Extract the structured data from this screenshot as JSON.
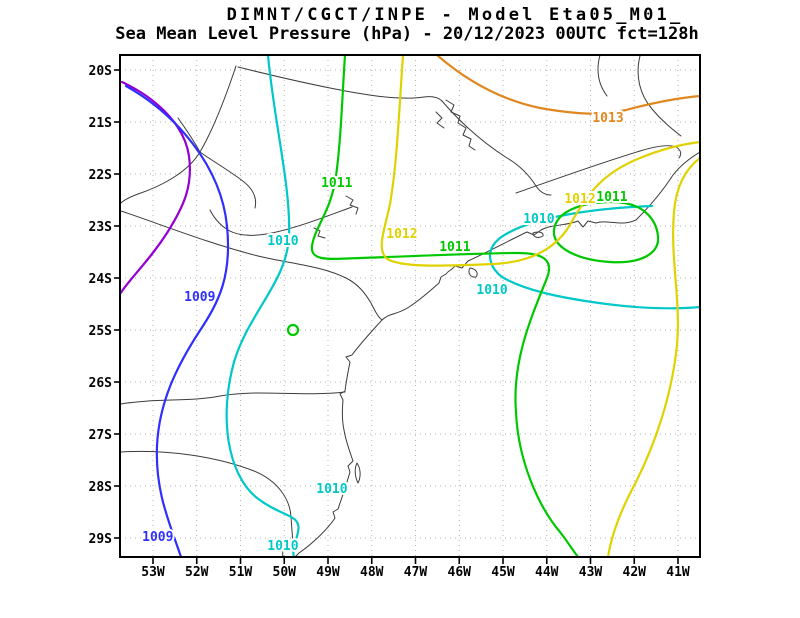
{
  "header": {
    "title_line1": "DIMNT/CGCT/INPE -  Model Eta05_M01_",
    "title_line2": "Sea Mean Level Pressure (hPa) - 20/12/2023 00UTC fct=128h"
  },
  "colors": {
    "purple": "#9400d3",
    "blue": "#2e2eff",
    "cyan": "#00c8c8",
    "green": "#00c800",
    "yellow": "#e0d200",
    "orange": "#e08820",
    "grid": "#b4b4b4",
    "map": "#3c3c3c",
    "frame": "#000000"
  },
  "axes": {
    "lat_ticks": [
      "20S",
      "21S",
      "22S",
      "23S",
      "24S",
      "25S",
      "26S",
      "27S",
      "28S",
      "29S"
    ],
    "lon_ticks": [
      "53W",
      "52W",
      "51W",
      "50W",
      "49W",
      "48W",
      "47W",
      "46W",
      "45W",
      "44W",
      "43W",
      "42W",
      "41W"
    ]
  },
  "chart_data": {
    "type": "contour-map",
    "variable": "Sea Mean Level Pressure (hPa)",
    "model": "Eta05_M01_",
    "center": "DIMNT/CGCT/INPE",
    "run": "20/12/2023 00UTC",
    "forecast": "fct=128h",
    "lat_range_deg_s": [
      20,
      29
    ],
    "lon_range_deg_w": [
      53,
      41
    ],
    "isobar_levels_hpa": [
      1009,
      1010,
      1011,
      1012,
      1013
    ],
    "isobars": [
      {
        "label": "",
        "color_key": "purple"
      },
      {
        "label": "1009",
        "color_key": "blue"
      },
      {
        "label": "1010",
        "color_key": "cyan"
      },
      {
        "label": "1011",
        "color_key": "green"
      },
      {
        "label": "1012",
        "color_key": "yellow"
      },
      {
        "label": "1013",
        "color_key": "orange"
      }
    ],
    "labels": [
      {
        "text": "1009",
        "level_color": "blue",
        "lon": 51.93,
        "lat": 24.37
      },
      {
        "text": "1009",
        "level_color": "blue",
        "lon": 52.89,
        "lat": 28.98
      },
      {
        "text": "1010",
        "level_color": "cyan",
        "lon": 50.03,
        "lat": 23.29
      },
      {
        "text": "1010",
        "level_color": "cyan",
        "lon": 48.91,
        "lat": 28.06
      },
      {
        "text": "1010",
        "level_color": "cyan",
        "lon": 50.03,
        "lat": 29.15
      },
      {
        "text": "1010",
        "level_color": "cyan",
        "lon": 44.18,
        "lat": 22.87
      },
      {
        "text": "1010",
        "level_color": "cyan",
        "lon": 45.25,
        "lat": 24.23
      },
      {
        "text": "1011",
        "level_color": "green",
        "lon": 48.8,
        "lat": 22.17
      },
      {
        "text": "1011",
        "level_color": "green",
        "lon": 46.1,
        "lat": 23.4
      },
      {
        "text": "1011",
        "level_color": "green",
        "lon": 42.51,
        "lat": 22.44
      },
      {
        "text": "1012",
        "level_color": "yellow",
        "lon": 47.31,
        "lat": 23.15
      },
      {
        "text": "1012",
        "level_color": "yellow",
        "lon": 43.24,
        "lat": 22.48
      },
      {
        "text": "1013",
        "level_color": "orange",
        "lon": 42.6,
        "lat": 20.92
      }
    ]
  }
}
